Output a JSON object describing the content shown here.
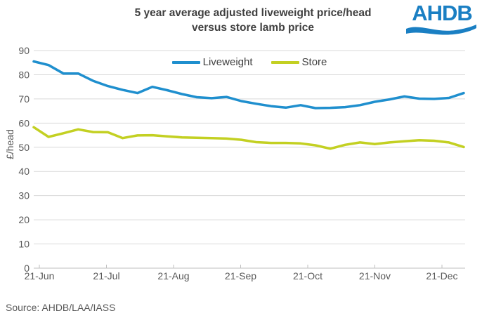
{
  "header": {
    "title_line1": "5 year average adjusted liveweight price/head",
    "title_line2": "versus store lamb price",
    "logo_text": "AHDB"
  },
  "footer": {
    "source": "Source: AHDB/LAA/IASS"
  },
  "colors": {
    "liveweight_blue": "#1f8fce",
    "store_green": "#c3d022",
    "title_text": "#404040",
    "axis_text": "#595959",
    "gridline": "#d9d9d9",
    "axis_line": "#bfbfbf",
    "logo_blue": "#1a7fc3"
  },
  "chart_data": {
    "type": "line",
    "title": "5 year average adjusted liveweight price/head versus store lamb price",
    "xlabel": "",
    "ylabel": "£/head",
    "ylim": [
      0,
      90
    ],
    "ytick_step": 10,
    "ytick_labels": [
      "0",
      "10",
      "20",
      "30",
      "40",
      "50",
      "60",
      "70",
      "80",
      "90"
    ],
    "x_tick_labels": [
      "21-Jun",
      "21-Jul",
      "21-Aug",
      "21-Sep",
      "21-Oct",
      "21-Nov",
      "21-Dec"
    ],
    "x_unit": "weekly points from 21-Jun to ~end of Dec",
    "grid": "horizontal",
    "legend_position": "top-center",
    "series": [
      {
        "name": "Liveweight",
        "color": "#1f8fce",
        "values": [
          85.5,
          84.0,
          80.5,
          80.5,
          77.5,
          75.3,
          73.7,
          72.4,
          75.0,
          73.6,
          72.0,
          70.7,
          70.3,
          70.8,
          69.1,
          68.0,
          67.0,
          66.4,
          67.4,
          66.2,
          66.3,
          66.6,
          67.4,
          68.8,
          69.8,
          71.0,
          70.1,
          70.0,
          70.4,
          72.4
        ]
      },
      {
        "name": "Store",
        "color": "#c3d022",
        "values": [
          58.3,
          54.3,
          55.8,
          57.4,
          56.3,
          56.2,
          53.8,
          54.9,
          55.0,
          54.5,
          54.1,
          53.9,
          53.8,
          53.6,
          53.1,
          52.1,
          51.8,
          51.8,
          51.6,
          50.8,
          49.4,
          51.0,
          52.0,
          51.3,
          52.0,
          52.5,
          52.9,
          52.7,
          52.0,
          50.1
        ]
      }
    ]
  }
}
